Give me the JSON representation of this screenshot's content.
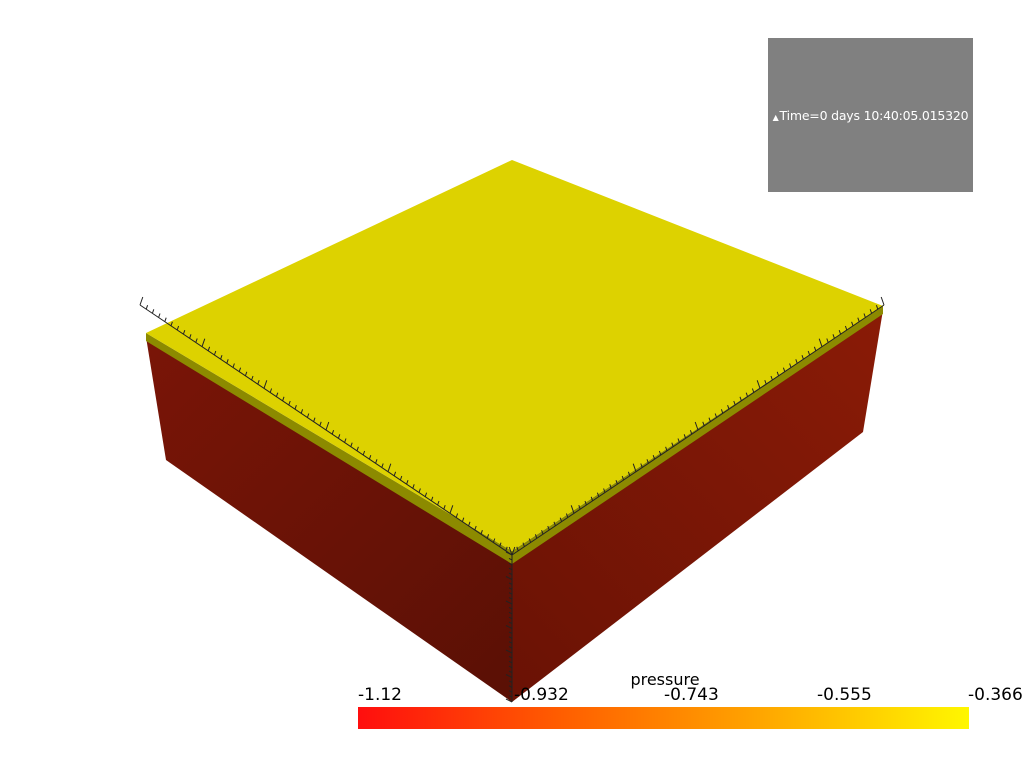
{
  "time_annotation": {
    "marker": "▲",
    "text": "Time=0 days 10:40:05.015320",
    "background": "#808080"
  },
  "scalar_bar": {
    "title": "pressure",
    "tick_labels": [
      "-1.12",
      "-0.932",
      "-0.743",
      "-0.555",
      "-0.366"
    ],
    "colormap": [
      "#ff0e0e",
      "#ff5d00",
      "#ffa600",
      "#fff700"
    ]
  },
  "model": {
    "top_color": "#ddd200",
    "side_left_color": "#661207",
    "side_right_color": "#7b1505",
    "rim_color": "#8c8a00"
  }
}
